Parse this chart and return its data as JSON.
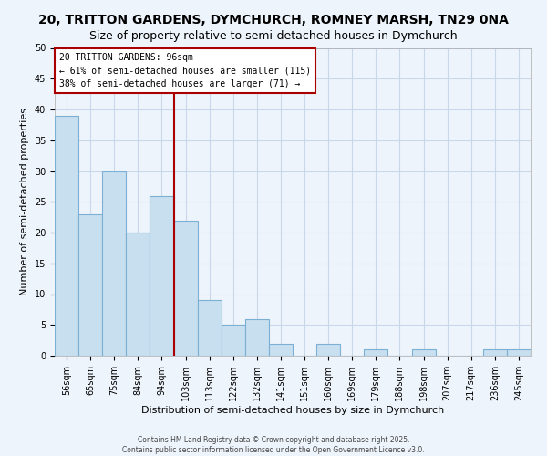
{
  "title": "20, TRITTON GARDENS, DYMCHURCH, ROMNEY MARSH, TN29 0NA",
  "subtitle": "Size of property relative to semi-detached houses in Dymchurch",
  "xlabel": "Distribution of semi-detached houses by size in Dymchurch",
  "ylabel": "Number of semi-detached properties",
  "bar_labels": [
    "56sqm",
    "65sqm",
    "75sqm",
    "84sqm",
    "94sqm",
    "103sqm",
    "113sqm",
    "122sqm",
    "132sqm",
    "141sqm",
    "151sqm",
    "160sqm",
    "169sqm",
    "179sqm",
    "188sqm",
    "198sqm",
    "207sqm",
    "217sqm",
    "236sqm",
    "245sqm"
  ],
  "bar_values": [
    39,
    23,
    30,
    20,
    26,
    22,
    9,
    5,
    6,
    2,
    0,
    2,
    0,
    1,
    0,
    1,
    0,
    0,
    1,
    1
  ],
  "bar_color": "#c8dff0",
  "bar_edgecolor": "#7bafd4",
  "vline_x_idx": 4.5,
  "vline_color": "#aa0000",
  "annotation_line1": "20 TRITTON GARDENS: 96sqm",
  "annotation_line2": "← 61% of semi-detached houses are smaller (115)",
  "annotation_line3": "38% of semi-detached houses are larger (71) →",
  "ylim": [
    0,
    50
  ],
  "yticks": [
    0,
    5,
    10,
    15,
    20,
    25,
    30,
    35,
    40,
    45,
    50
  ],
  "footer_line1": "Contains HM Land Registry data © Crown copyright and database right 2025.",
  "footer_line2": "Contains public sector information licensed under the Open Government Licence v3.0.",
  "background_color": "#eef4fb",
  "grid_color": "#c8d8ea",
  "title_fontsize": 10,
  "axis_label_fontsize": 8,
  "tick_fontsize": 7
}
